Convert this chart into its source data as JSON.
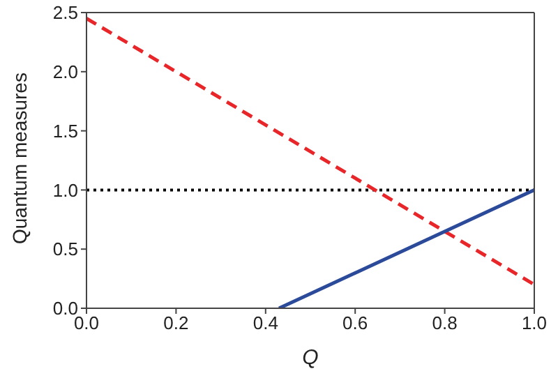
{
  "chart_data": {
    "type": "line",
    "xlabel": "Q",
    "ylabel": "Quantum measures",
    "xlim": [
      0,
      1
    ],
    "ylim": [
      0,
      2.5
    ],
    "xticks": [
      {
        "value": 0,
        "label": "0.0"
      },
      {
        "value": 0.2,
        "label": "0.2"
      },
      {
        "value": 0.4,
        "label": "0.4"
      },
      {
        "value": 0.6,
        "label": "0.6"
      },
      {
        "value": 0.8,
        "label": "0.8"
      },
      {
        "value": 1,
        "label": "1.0"
      }
    ],
    "yticks": [
      {
        "value": 0,
        "label": "0.0"
      },
      {
        "value": 0.5,
        "label": "0.5"
      },
      {
        "value": 1,
        "label": "1.0"
      },
      {
        "value": 1.5,
        "label": "1.5"
      },
      {
        "value": 2,
        "label": "2.0"
      },
      {
        "value": 2.5,
        "label": "2.5"
      }
    ],
    "grid": false,
    "marker": "none",
    "series": [
      {
        "color": "#e8262a",
        "line_style": "dashed",
        "x": [
          0,
          1
        ],
        "values": [
          2.45,
          0.2
        ]
      },
      {
        "color": "#2c4a9a",
        "line_style": "solid",
        "x": [
          0.43,
          1
        ],
        "values": [
          0,
          1
        ]
      }
    ],
    "ref_lines": [
      {
        "axis": "y",
        "value": 1,
        "color": "#000000",
        "line_style": "dotted"
      }
    ]
  }
}
